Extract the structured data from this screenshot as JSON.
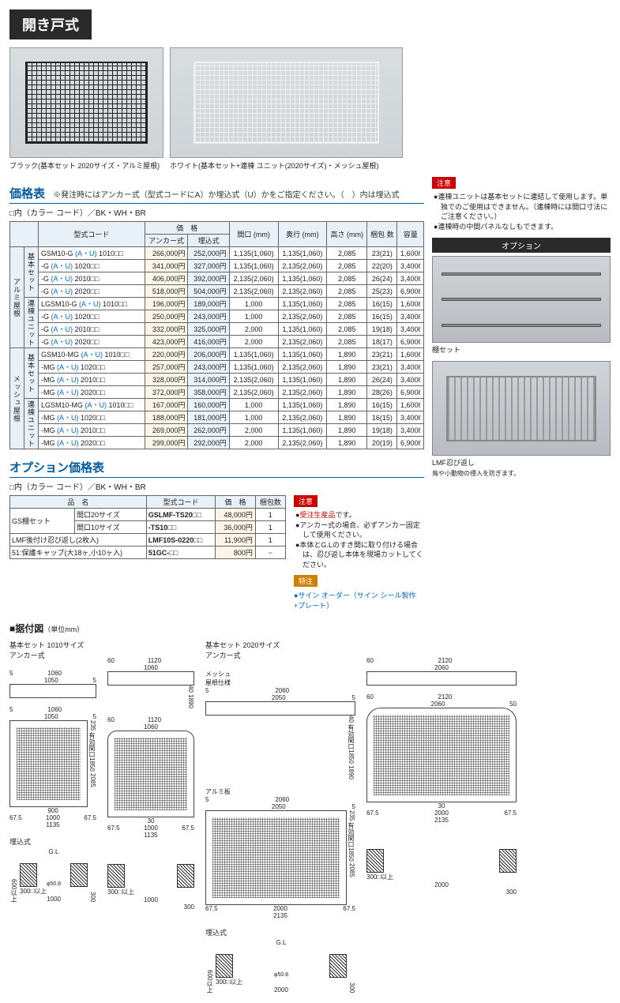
{
  "header": "開き戸式",
  "photos": [
    {
      "caption": "ブラック(基本セット 2020サイズ・アルミ屋根)",
      "variant": "black"
    },
    {
      "caption": "ホワイト(基本セット+連棟 ユニット(2020サイズ)・メッシュ屋根)",
      "variant": "white"
    }
  ],
  "price_section": {
    "title": "価格表",
    "note": "※発注時にはアンカー式（型式コードにA）か埋込式（U）かをご指定ください。（　）内は埋込式",
    "code_note": "□内（カラー コード）／BK・WH・BR",
    "columns": [
      "型式コード",
      "価　格",
      "間口\n(mm)",
      "奥行\n(mm)",
      "高さ\n(mm)",
      "梱包\n数",
      "容量"
    ],
    "price_sub": [
      "アンカー式",
      "埋込式"
    ],
    "groups": [
      {
        "side1": "アルミ屋根",
        "side2": "基本セット",
        "rows": [
          {
            "model": "GSM10-G (A・U) 1010□□",
            "p1": "266,000円",
            "p2": "252,000円",
            "w": "1,135(1,060)",
            "d": "1,135(1,060)",
            "h": "2,085",
            "pk": "23(21)",
            "v": "1,600ℓ"
          },
          {
            "model": "-G (A・U) 1020□□",
            "p1": "341,000円",
            "p2": "327,000円",
            "w": "1,135(1,060)",
            "d": "2,135(2,060)",
            "h": "2,085",
            "pk": "22(20)",
            "v": "3,400ℓ"
          },
          {
            "model": "-G (A・U) 2010□□",
            "p1": "406,000円",
            "p2": "392,000円",
            "w": "2,135(2,060)",
            "d": "1,135(1,060)",
            "h": "2,085",
            "pk": "26(24)",
            "v": "3,400ℓ"
          },
          {
            "model": "-G (A・U) 2020□□",
            "p1": "518,000円",
            "p2": "504,000円",
            "w": "2,135(2,060)",
            "d": "2,135(2,060)",
            "h": "2,085",
            "pk": "25(23)",
            "v": "6,900ℓ"
          }
        ]
      },
      {
        "side1": "",
        "side2": "連棟ユニット",
        "rows": [
          {
            "model": "LGSM10-G (A・U) 1010□□",
            "p1": "196,000円",
            "p2": "189,000円",
            "w": "1,000",
            "d": "1,135(1,060)",
            "h": "2,085",
            "pk": "16(15)",
            "v": "1,600ℓ"
          },
          {
            "model": "-G (A・U) 1020□□",
            "p1": "250,000円",
            "p2": "243,000円",
            "w": "1,000",
            "d": "2,135(2,060)",
            "h": "2,085",
            "pk": "16(15)",
            "v": "3,400ℓ"
          },
          {
            "model": "-G (A・U) 2010□□",
            "p1": "332,000円",
            "p2": "325,000円",
            "w": "2,000",
            "d": "1,135(1,060)",
            "h": "2,085",
            "pk": "19(18)",
            "v": "3,400ℓ"
          },
          {
            "model": "-G (A・U) 2020□□",
            "p1": "423,000円",
            "p2": "416,000円",
            "w": "2,000",
            "d": "2,135(2,060)",
            "h": "2,085",
            "pk": "18(17)",
            "v": "6,900ℓ"
          }
        ]
      },
      {
        "side1": "メッシュ屋根",
        "side2": "基本セット",
        "rows": [
          {
            "model": "GSM10-MG (A・U) 1010□□",
            "p1": "220,000円",
            "p2": "206,000円",
            "w": "1,135(1,060)",
            "d": "1,135(1,060)",
            "h": "1,890",
            "pk": "23(21)",
            "v": "1,600ℓ"
          },
          {
            "model": "-MG (A・U) 1020□□",
            "p1": "257,000円",
            "p2": "243,000円",
            "w": "1,135(1,060)",
            "d": "2,135(2,060)",
            "h": "1,890",
            "pk": "23(21)",
            "v": "3,400ℓ"
          },
          {
            "model": "-MG (A・U) 2010□□",
            "p1": "328,000円",
            "p2": "314,000円",
            "w": "2,135(2,060)",
            "d": "1,135(1,060)",
            "h": "1,890",
            "pk": "26(24)",
            "v": "3,400ℓ"
          },
          {
            "model": "-MG (A・U) 2020□□",
            "p1": "372,000円",
            "p2": "358,000円",
            "w": "2,135(2,060)",
            "d": "2,135(2,060)",
            "h": "1,890",
            "pk": "28(26)",
            "v": "6,900ℓ"
          }
        ]
      },
      {
        "side1": "",
        "side2": "連棟ユニット",
        "rows": [
          {
            "model": "LGSM10-MG (A・U) 1010□□",
            "p1": "167,000円",
            "p2": "160,000円",
            "w": "1,000",
            "d": "1,135(1,060)",
            "h": "1,890",
            "pk": "16(15)",
            "v": "1,600ℓ"
          },
          {
            "model": "-MG (A・U) 1020□□",
            "p1": "188,000円",
            "p2": "181,000円",
            "w": "1,000",
            "d": "2,135(2,060)",
            "h": "1,890",
            "pk": "16(15)",
            "v": "3,400ℓ"
          },
          {
            "model": "-MG (A・U) 2010□□",
            "p1": "269,000円",
            "p2": "262,000円",
            "w": "2,000",
            "d": "1,135(1,060)",
            "h": "1,890",
            "pk": "19(18)",
            "v": "3,400ℓ"
          },
          {
            "model": "-MG (A・U) 2020□□",
            "p1": "299,000円",
            "p2": "292,000円",
            "w": "2,000",
            "d": "2,135(2,060)",
            "h": "1,890",
            "pk": "20(19)",
            "v": "6,900ℓ"
          }
        ]
      }
    ]
  },
  "right_notice": {
    "badge": "注意",
    "items": [
      "●連棟ユニットは基本セットに連結して使用します。単独でのご使用はできません。（連棟時には間口寸法にご注意ください。）",
      "●連棟時の中間パネルなしもできます。"
    ]
  },
  "option_block": {
    "label": "オプション",
    "items": [
      {
        "caption": "棚セット"
      },
      {
        "caption": "LMF忍び返し",
        "sub": "鳥や小動物の侵入を防ぎます。"
      }
    ]
  },
  "option_price": {
    "title": "オプション価格表",
    "code_note": "□内（カラー コード）／BK・WH・BR",
    "columns": [
      "品　名",
      "型式コード",
      "価　格",
      "梱包数"
    ],
    "rows": [
      {
        "name": "GS棚セット",
        "sub": "間口20サイズ",
        "model": "GSLMF-TS20□□",
        "price": "48,000円",
        "pk": "1"
      },
      {
        "name": "",
        "sub": "間口10サイズ",
        "model": "-TS10□□",
        "price": "36,000円",
        "pk": "1"
      },
      {
        "name": "LMF後付け忍び返し(2枚入)",
        "sub": "",
        "model": "LMF10S-0220□□",
        "price": "11,900円",
        "pk": "1"
      },
      {
        "name": "51:保護キャップ(大18ヶ,小10ヶ入)",
        "sub": "",
        "model": "51GC-□□",
        "price": "800円",
        "pk": "−"
      }
    ]
  },
  "option_notice": {
    "badge": "注意",
    "items": [
      "●受注生産品です。",
      "●アンカー式の場合、必ずアンカー固定して使用ください。",
      "●本体とG.Lのすき間に取り付ける場合は、忍び返し本体を現場カットしてください。"
    ],
    "special_badge": "特注",
    "special": "●サイン オーダー（サイン シール製作+プレート）"
  },
  "diagram": {
    "title": "■据付図",
    "unit": "（単位mm）",
    "col1_label": "基本セット 1010サイズ\nアンカー式",
    "col3_label": "基本セット 2020サイズ\nアンカー式",
    "dims": {
      "d1060": "1060",
      "d1050": "1050",
      "d5": "5",
      "d40": "40",
      "d1120": "1120",
      "d60": "60",
      "d1850": "有効間口1850",
      "d1890": "1890",
      "d235": "235",
      "d2085": "2085",
      "d30": "30",
      "d900": "900",
      "d67_5": "67.5",
      "d1000": "1000",
      "d1135": "1135",
      "d2060": "2060",
      "d2050": "2050",
      "d2120": "2120",
      "d50": "50",
      "d2000": "2000",
      "d2135": "2135",
      "embed": "埋込式",
      "gl": "G.L",
      "d600": "600以上",
      "d508": "φ50.8",
      "d300": "300",
      "d300sq": "300□以上",
      "mesh": "メッシュ\n屋根仕様",
      "alumi": "アルミ板"
    }
  }
}
